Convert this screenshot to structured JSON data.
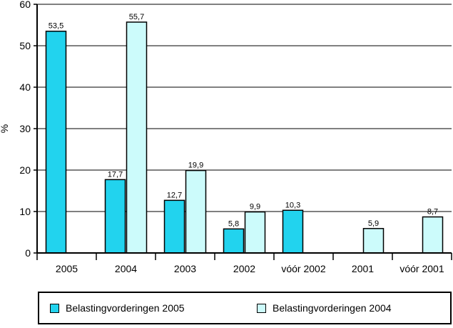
{
  "chart_data": {
    "type": "bar",
    "ylabel": "%",
    "xlabel": "",
    "ylim": [
      0,
      60
    ],
    "yticks": [
      "0",
      "10",
      "20",
      "30",
      "40",
      "50",
      "60"
    ],
    "grid": true,
    "legend_position": "bottom",
    "categories": [
      "2005",
      "2004",
      "2003",
      "2002",
      "vóór 2002",
      "2001",
      "vóór 2001"
    ],
    "series": [
      {
        "name": "Belastingvorderingen 2005",
        "color": "#22d3ee",
        "values": [
          53.5,
          17.7,
          12.7,
          5.8,
          10.3,
          null,
          null
        ],
        "labels": [
          "53,5",
          "17,7",
          "12,7",
          "5,8",
          "10,3",
          "",
          ""
        ]
      },
      {
        "name": "Belastingvorderingen 2004",
        "color": "#ccfbfb",
        "values": [
          null,
          55.7,
          19.9,
          9.9,
          null,
          5.9,
          8.7
        ],
        "labels": [
          "",
          "55,7",
          "19,9",
          "9,9",
          "",
          "5,9",
          "8,7"
        ]
      }
    ]
  }
}
